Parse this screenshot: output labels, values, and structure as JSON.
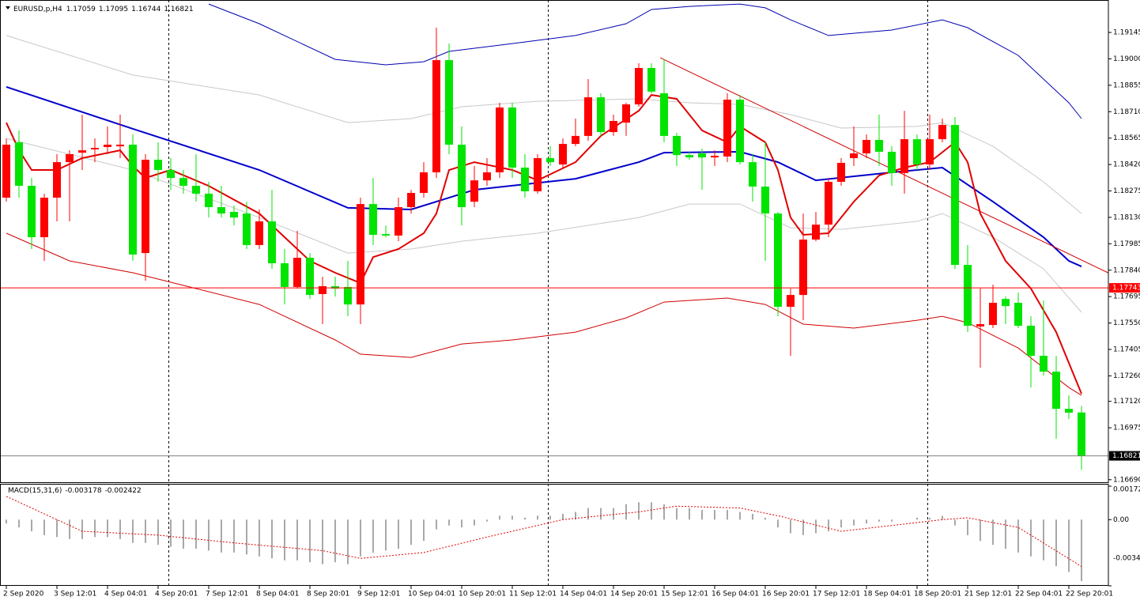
{
  "chart_data": {
    "type": "candlestick",
    "title": "EURUSD,p,H4",
    "up_color": "#ff0000",
    "down_color": "#00e400",
    "grid": false,
    "xlim": [
      -0.5,
      87.125
    ],
    "xticks": [
      {
        "value": 0,
        "label": "2 Sep 2020"
      },
      {
        "value": 4,
        "label": "3 Sep 12:01"
      },
      {
        "value": 8,
        "label": "4 Sep 04:01"
      },
      {
        "value": 12,
        "label": "4 Sep 20:01"
      },
      {
        "value": 16,
        "label": "7 Sep 12:01"
      },
      {
        "value": 20,
        "label": "8 Sep 04:01"
      },
      {
        "value": 24,
        "label": "8 Sep 20:01"
      },
      {
        "value": 28,
        "label": "9 Sep 12:01"
      },
      {
        "value": 32,
        "label": "10 Sep 04:01"
      },
      {
        "value": 36,
        "label": "10 Sep 20:01"
      },
      {
        "value": 40,
        "label": "11 Sep 12:01"
      },
      {
        "value": 44,
        "label": "14 Sep 04:01"
      },
      {
        "value": 48,
        "label": "14 Sep 20:01"
      },
      {
        "value": 52,
        "label": "15 Sep 12:01"
      },
      {
        "value": 56,
        "label": "16 Sep 04:01"
      },
      {
        "value": 60,
        "label": "16 Sep 20:01"
      },
      {
        "value": 64,
        "label": "17 Sep 12:01"
      },
      {
        "value": 68,
        "label": "18 Sep 04:01"
      },
      {
        "value": 72,
        "label": "18 Sep 20:01"
      },
      {
        "value": 76,
        "label": "21 Sep 12:01"
      },
      {
        "value": 80,
        "label": "22 Sep 04:01"
      },
      {
        "value": 84,
        "label": "22 Sep 20:01"
      }
    ],
    "ylim": [
      1.16676,
      1.19323
    ],
    "yticks": [
      1.19145,
      {
        "value": 1.19,
        "label": "1.19000"
      },
      1.18855,
      {
        "value": 1.1871,
        "label": "1.18710"
      },
      1.18565,
      {
        "value": 1.1842,
        "label": "1.18420"
      },
      1.18275,
      {
        "value": 1.1813,
        "label": "1.18130"
      },
      1.17985,
      {
        "value": 1.1784,
        "label": "1.17840"
      },
      1.17695,
      {
        "value": 1.1755,
        "label": "1.17550"
      },
      1.17405,
      {
        "value": 1.1726,
        "label": "1.17260"
      },
      {
        "value": 1.1712,
        "label": "1.17120"
      },
      1.16975,
      {
        "value": 1.1669,
        "label": "1.16690"
      }
    ],
    "open": [
      1.18238,
      1.18542,
      1.18303,
      1.18021,
      1.18238,
      1.18433,
      1.18485,
      1.18503,
      1.18516,
      1.1852,
      1.18529,
      1.17934,
      1.18446,
      1.1839,
      1.18346,
      1.18303,
      1.1826,
      1.18186,
      1.1816,
      1.18151,
      1.17978,
      1.18108,
      1.17878,
      1.17748,
      1.17908,
      1.17709,
      1.17752,
      1.17748,
      1.17652,
      1.18203,
      1.18038,
      1.1803,
      1.18186,
      1.18264,
      1.18377,
      1.18993,
      1.18529,
      1.18216,
      1.18333,
      1.18377,
      1.18733,
      1.18403,
      1.18273,
      1.18455,
      1.1842,
      1.18533,
      1.18577,
      1.18789,
      1.18598,
      1.1865,
      1.1875,
      1.1895,
      1.18811,
      1.18577,
      1.18472,
      1.18481,
      1.18459,
      1.18464,
      1.18776,
      1.18433,
      1.18299,
      1.18151,
      1.17639,
      1.17704,
      1.18008,
      1.1809,
      1.18325,
      1.18455,
      1.18481,
      1.18555,
      1.1849,
      1.18373,
      1.18559,
      1.1842,
      1.18559,
      1.18637,
      1.17869,
      1.17531,
      1.17539,
      1.17682,
      1.17661,
      1.17535,
      1.1737,
      1.17283,
      1.17079,
      1.17059
    ],
    "high": [
      1.18563,
      1.18607,
      1.18346,
      1.1826,
      1.18477,
      1.18498,
      1.18694,
      1.18563,
      1.18629,
      1.18694,
      1.18585,
      1.18477,
      1.18542,
      1.18455,
      1.1839,
      1.18477,
      1.18325,
      1.18303,
      1.18195,
      1.18216,
      1.18173,
      1.18281,
      1.17956,
      1.18056,
      1.17934,
      1.17804,
      1.17804,
      1.17891,
      1.18238,
      1.18346,
      1.18086,
      1.18238,
      1.18281,
      1.18433,
      1.19171,
      1.19084,
      1.18629,
      1.18412,
      1.18455,
      1.18759,
      1.18759,
      1.18477,
      1.18477,
      1.1852,
      1.18563,
      1.18672,
      1.18889,
      1.18811,
      1.18694,
      1.18759,
      1.18976,
      1.18976,
      1.18997,
      1.18594,
      1.1849,
      1.18507,
      1.18498,
      1.18811,
      1.18802,
      1.18477,
      1.18542,
      1.1816,
      1.17739,
      1.18151,
      1.1816,
      1.18346,
      1.18455,
      1.18629,
      1.18585,
      1.18694,
      1.1852,
      1.18715,
      1.18585,
      1.18694,
      1.18672,
      1.18681,
      1.17978,
      1.17739,
      1.17761,
      1.17695,
      1.17717,
      1.17587,
      1.17674,
      1.1737,
      1.17153,
      1.17095
    ],
    "low": [
      1.18216,
      1.18238,
      1.17956,
      1.17891,
      1.18108,
      1.18108,
      1.1839,
      1.18433,
      1.18477,
      1.18455,
      1.17891,
      1.17782,
      1.18325,
      1.18281,
      1.1826,
      1.18216,
      1.18129,
      1.18129,
      1.18086,
      1.17956,
      1.17956,
      1.17847,
      1.17652,
      1.17739,
      1.17682,
      1.17544,
      1.17695,
      1.17587,
      1.17544,
      1.17978,
      1.18021,
      1.17999,
      1.18151,
      1.18238,
      1.18346,
      1.18477,
      1.18086,
      1.18186,
      1.18303,
      1.18346,
      1.18346,
      1.18238,
      1.1826,
      1.18412,
      1.18403,
      1.1852,
      1.1855,
      1.18577,
      1.18577,
      1.18577,
      1.18737,
      1.18811,
      1.18542,
      1.18412,
      1.18446,
      1.18281,
      1.18412,
      1.18433,
      1.1842,
      1.18216,
      1.17891,
      1.17587,
      1.1737,
      1.17565,
      1.17999,
      1.18021,
      1.18303,
      1.18412,
      1.18455,
      1.18412,
      1.18303,
      1.1826,
      1.1839,
      1.1839,
      1.18542,
      1.17847,
      1.175,
      1.17305,
      1.17522,
      1.17544,
      1.17522,
      1.17196,
      1.17261,
      1.16914,
      1.17023,
      1.16744
    ],
    "close": [
      1.18529,
      1.18303,
      1.18021,
      1.18238,
      1.18433,
      1.18477,
      1.18498,
      1.18511,
      1.18529,
      1.18529,
      1.17926,
      1.18446,
      1.1839,
      1.18346,
      1.18303,
      1.1826,
      1.18186,
      1.18151,
      1.18129,
      1.17978,
      1.18108,
      1.17878,
      1.17748,
      1.17908,
      1.17704,
      1.17752,
      1.17739,
      1.17652,
      1.18203,
      1.18034,
      1.1803,
      1.18186,
      1.18264,
      1.18377,
      1.18993,
      1.18529,
      1.18186,
      1.18333,
      1.18377,
      1.18733,
      1.18403,
      1.18273,
      1.18455,
      1.18433,
      1.18533,
      1.18577,
      1.18789,
      1.18598,
      1.18659,
      1.1875,
      1.1895,
      1.1882,
      1.18577,
      1.18472,
      1.18459,
      1.18459,
      1.18468,
      1.18776,
      1.18433,
      1.18299,
      1.18151,
      1.17639,
      1.17704,
      1.18008,
      1.1809,
      1.18325,
      1.18429,
      1.18481,
      1.18555,
      1.1849,
      1.18373,
      1.18559,
      1.1842,
      1.18559,
      1.18637,
      1.17869,
      1.17535,
      1.17544,
      1.17661,
      1.17643,
      1.17535,
      1.1737,
      1.17283,
      1.17079,
      1.17058,
      1.16821
    ],
    "lines": [
      {
        "color": "#0000b0",
        "width": 1,
        "x": [
          16,
          20,
          26,
          30,
          33,
          35,
          40,
          45,
          49,
          51,
          54,
          58,
          60,
          62,
          65,
          70,
          74,
          76,
          80,
          84,
          85
        ],
        "values": [
          1.19301,
          1.19193,
          1.18997,
          1.18967,
          1.18984,
          1.19041,
          1.19084,
          1.19128,
          1.19193,
          1.19271,
          1.19288,
          1.19301,
          1.1928,
          1.19214,
          1.19128,
          1.19158,
          1.19214,
          1.19171,
          1.19019,
          1.18759,
          1.18672
        ]
      },
      {
        "color": "#c8c8c8",
        "width": 1,
        "x": [
          0,
          10,
          20,
          27,
          32,
          36,
          42,
          50,
          54,
          58,
          62,
          66,
          72,
          74,
          78,
          82,
          85
        ],
        "values": [
          1.19128,
          1.18911,
          1.18802,
          1.1865,
          1.18672,
          1.18737,
          1.18767,
          1.1878,
          1.18759,
          1.1875,
          1.18694,
          1.1862,
          1.18629,
          1.1865,
          1.1852,
          1.18325,
          1.18151
        ]
      },
      {
        "color": "#0000cc",
        "width": 2,
        "x": [
          0,
          10,
          20,
          27,
          32,
          37,
          45,
          50,
          52,
          58,
          61,
          64,
          70,
          74,
          78,
          82,
          84,
          85
        ],
        "values": [
          1.18846,
          1.18616,
          1.1839,
          1.18182,
          1.18173,
          1.18281,
          1.18342,
          1.18433,
          1.18485,
          1.1849,
          1.18433,
          1.18333,
          1.18377,
          1.18403,
          1.18216,
          1.18021,
          1.17891,
          1.1786
        ]
      },
      {
        "color": "#c8c8c8",
        "width": 1,
        "x": [
          0,
          10,
          20,
          27,
          32,
          36,
          42,
          50,
          54,
          58,
          62,
          66,
          72,
          74,
          78,
          82,
          85
        ],
        "values": [
          1.18563,
          1.1839,
          1.18129,
          1.17934,
          1.17956,
          1.17999,
          1.18043,
          1.18129,
          1.18203,
          1.18203,
          1.18073,
          1.18064,
          1.18108,
          1.18151,
          1.18021,
          1.17847,
          1.17609
        ]
      },
      {
        "color": "#d00000",
        "width": 1,
        "x": [
          0,
          5,
          10,
          15,
          20,
          26,
          28,
          32,
          36,
          40,
          45,
          49,
          52,
          57,
          60,
          63,
          67,
          72,
          74,
          76,
          80,
          84,
          85
        ],
        "values": [
          1.18043,
          1.17891,
          1.17826,
          1.17739,
          1.17652,
          1.17457,
          1.17379,
          1.17361,
          1.17435,
          1.17457,
          1.175,
          1.17578,
          1.17665,
          1.17687,
          1.17652,
          1.17544,
          1.17522,
          1.17565,
          1.17587,
          1.17552,
          1.17413,
          1.17196,
          1.17153
        ]
      },
      {
        "color": "#e00000",
        "width": 2,
        "x": [
          0,
          1,
          2,
          4,
          6,
          9,
          10,
          11,
          13,
          16,
          20,
          22,
          24,
          26,
          28,
          29,
          31,
          33,
          34,
          35,
          37,
          40,
          42,
          45,
          47,
          50,
          51,
          53,
          55,
          57,
          58,
          60,
          61,
          62,
          63,
          65,
          67,
          69,
          71,
          73,
          75,
          76,
          77,
          79,
          81,
          83,
          85
        ],
        "values": [
          1.1865,
          1.18498,
          1.1839,
          1.1839,
          1.18455,
          1.18498,
          1.18412,
          1.18346,
          1.1839,
          1.18303,
          1.18151,
          1.18021,
          1.17891,
          1.17826,
          1.17769,
          1.17912,
          1.17956,
          1.18043,
          1.18151,
          1.1839,
          1.18433,
          1.1839,
          1.18333,
          1.18433,
          1.18577,
          1.18715,
          1.18802,
          1.1878,
          1.18607,
          1.18542,
          1.18629,
          1.18542,
          1.1839,
          1.18129,
          1.18034,
          1.18043,
          1.18216,
          1.1836,
          1.18403,
          1.18433,
          1.18542,
          1.18433,
          1.18151,
          1.17891,
          1.17739,
          1.175,
          1.17162
        ]
      }
    ],
    "trendline": {
      "color": "#d00000",
      "x": [
        51.7,
        87.1
      ],
      "values": [
        1.19006,
        1.17826
      ]
    },
    "level": {
      "value": 1.17743,
      "color": "#ff0000"
    },
    "macd": {
      "title": "MACD(15,31,6)",
      "ylim": [
        -0.003417,
        0.001727
      ],
      "yticks": [
        0.001727,
        {
          "value": 0,
          "label": "0.00"
        },
        -0.003417
      ],
      "histogram": [
        -0.0002,
        -0.0004,
        -0.0006,
        -0.0008,
        -0.0009,
        -0.001,
        -0.001,
        -0.0009,
        -0.0009,
        -0.001,
        -0.0012,
        -0.0012,
        -0.0013,
        -0.0014,
        -0.0015,
        -0.0015,
        -0.0016,
        -0.0017,
        -0.0017,
        -0.0018,
        -0.0019,
        -0.002,
        -0.0021,
        -0.0021,
        -0.0022,
        -0.0023,
        -0.0022,
        -0.0023,
        -0.0019,
        -0.0017,
        -0.0016,
        -0.0015,
        -0.0013,
        -0.0011,
        -0.0005,
        -0.0003,
        -0.0004,
        -0.0003,
        -0.0001,
        0.0002,
        0.0002,
        0.0001,
        0.0002,
        0.0002,
        0.0003,
        0.0004,
        0.0006,
        0.0006,
        0.0006,
        0.0008,
        0.0009,
        0.0009,
        0.0008,
        0.0006,
        0.0006,
        0.0005,
        0.0005,
        0.0005,
        0.0004,
        0.0003,
        0.0001,
        -0.0004,
        -0.0007,
        -0.0008,
        -0.0007,
        -0.0006,
        -0.0004,
        -0.0003,
        -0.0002,
        -0.0001,
        -0.0001,
        0,
        0.0001,
        0.0001,
        0.0002,
        -0.0003,
        -0.0008,
        -0.0011,
        -0.0013,
        -0.0015,
        -0.0017,
        -0.0019,
        -0.0021,
        -0.0024,
        -0.0027,
        -0.003178
      ],
      "histogram_color": "#a8a8a8",
      "signal": {
        "color": "#e00000",
        "x": [
          0,
          6,
          12,
          18,
          25,
          28,
          33,
          38,
          44,
          50,
          53,
          58,
          61,
          66,
          70,
          74,
          76,
          80,
          85
        ],
        "values": [
          0.0012,
          -0.0006,
          -0.0008,
          -0.0012,
          -0.0016,
          -0.002,
          -0.0017,
          -0.0009,
          0,
          0.0004,
          0.0007,
          0.0006,
          0.0002,
          -0.0006,
          -0.0003,
          0,
          0.0001,
          -0.0004,
          -0.002422
        ]
      }
    }
  }
}
